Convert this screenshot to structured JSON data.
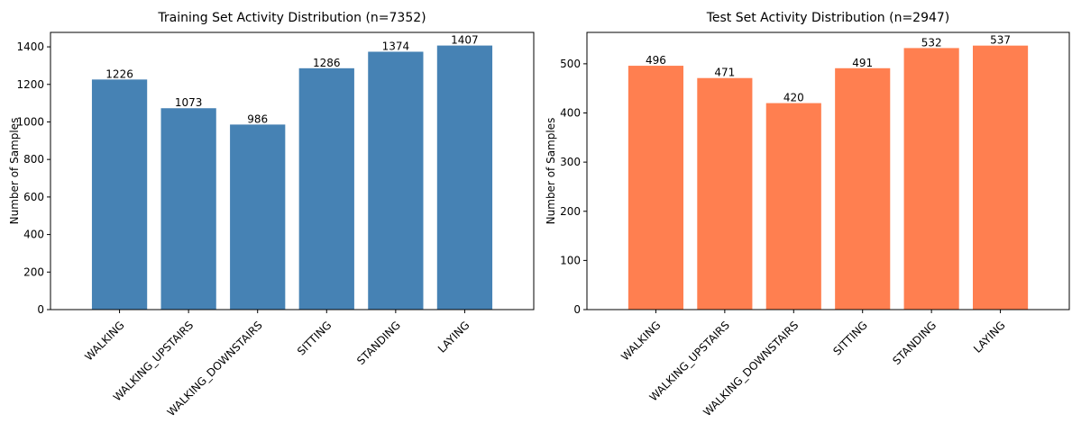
{
  "chart_data": [
    {
      "type": "bar",
      "title": "Training Set Activity Distribution (n=7352)",
      "xlabel": "",
      "ylabel": "Number of Samples",
      "categories": [
        "WALKING",
        "WALKING_UPSTAIRS",
        "WALKING_DOWNSTAIRS",
        "SITTING",
        "STANDING",
        "LAYING"
      ],
      "values": [
        1226,
        1073,
        986,
        1286,
        1374,
        1407
      ],
      "ylim": [
        0,
        1477
      ],
      "yticks": [
        0,
        200,
        400,
        600,
        800,
        1000,
        1200,
        1400
      ],
      "color": "#4682b4",
      "xtick_rotation_deg": 45,
      "grid": false,
      "legend": "none"
    },
    {
      "type": "bar",
      "title": "Test Set Activity Distribution (n=2947)",
      "xlabel": "",
      "ylabel": "Number of Samples",
      "categories": [
        "WALKING",
        "WALKING_UPSTAIRS",
        "WALKING_DOWNSTAIRS",
        "SITTING",
        "STANDING",
        "LAYING"
      ],
      "values": [
        496,
        471,
        420,
        491,
        532,
        537
      ],
      "ylim": [
        0,
        563.85
      ],
      "yticks": [
        0,
        100,
        200,
        300,
        400,
        500
      ],
      "color": "#ff7f50",
      "xtick_rotation_deg": 45,
      "grid": false,
      "legend": "none"
    }
  ]
}
